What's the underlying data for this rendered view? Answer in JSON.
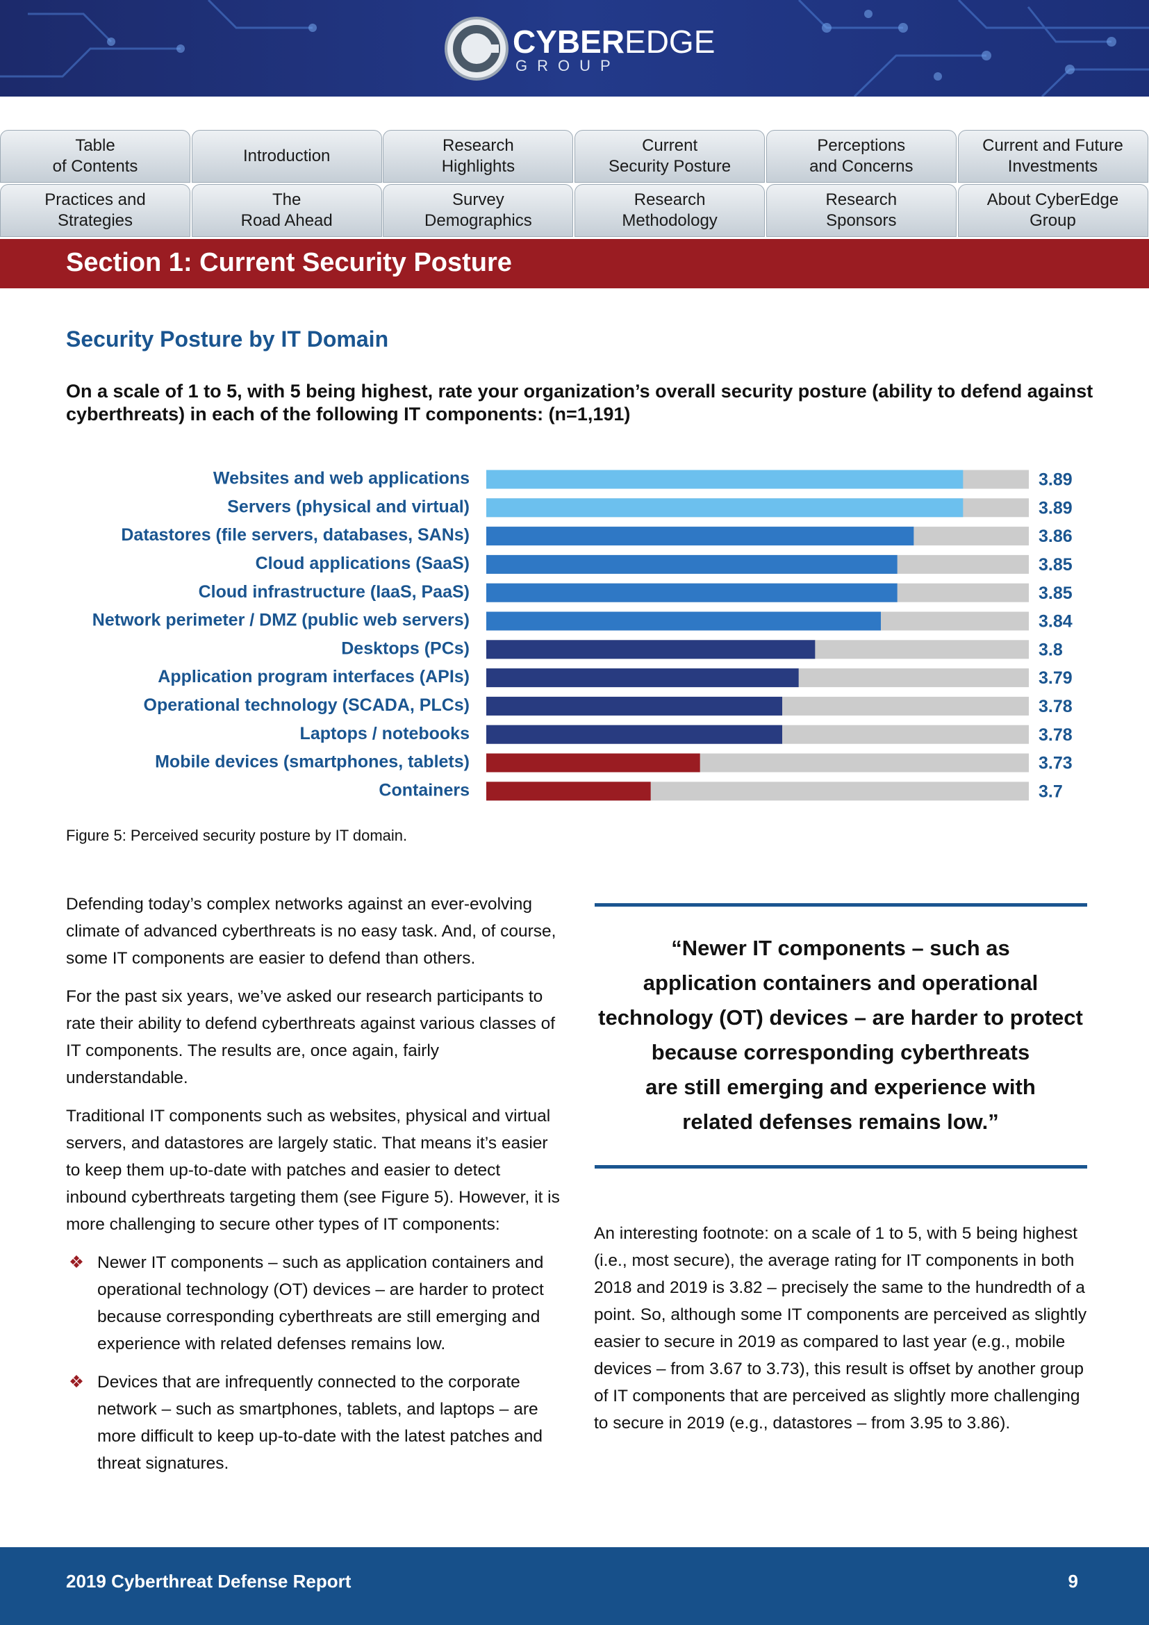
{
  "header": {
    "logo": {
      "primary": "CYBER",
      "secondary": "EDGE",
      "sub": "GROUP"
    }
  },
  "nav": {
    "rows": [
      [
        [
          "Table",
          "of Contents"
        ],
        [
          "Introduction"
        ],
        [
          "Research",
          "Highlights"
        ],
        [
          "Current",
          "Security Posture"
        ],
        [
          "Perceptions",
          "and Concerns"
        ],
        [
          "Current and Future",
          "Investments"
        ]
      ],
      [
        [
          "Practices and",
          "Strategies"
        ],
        [
          "The",
          "Road Ahead"
        ],
        [
          "Survey",
          "Demographics"
        ],
        [
          "Research",
          "Methodology"
        ],
        [
          "Research",
          "Sponsors"
        ],
        [
          "About CyberEdge",
          "Group"
        ]
      ]
    ]
  },
  "section_title": "Section 1: Current Security Posture",
  "heading": "Security Posture by IT Domain",
  "question": "On a scale of 1 to 5, with 5 being highest, rate your organization’s overall security posture (ability to defend against cyberthreats) in each of the following IT components: (n=1,191)",
  "chart_data": {
    "type": "bar",
    "orientation": "horizontal",
    "categories": [
      "Websites and web applications",
      "Servers (physical and virtual)",
      "Datastores (file servers, databases, SANs)",
      "Cloud applications (SaaS)",
      "Cloud infrastructure (IaaS, PaaS)",
      "Network perimeter / DMZ (public web servers)",
      "Desktops (PCs)",
      "Application program interfaces (APIs)",
      "Operational technology (SCADA, PLCs)",
      "Laptops / notebooks",
      "Mobile devices (smartphones, tablets)",
      "Containers"
    ],
    "values": [
      3.89,
      3.89,
      3.86,
      3.85,
      3.85,
      3.84,
      3.8,
      3.79,
      3.78,
      3.78,
      3.73,
      3.7
    ],
    "colors": [
      "#6cc0ee",
      "#6cc0ee",
      "#2f78c5",
      "#2f78c5",
      "#2f78c5",
      "#2f78c5",
      "#283b80",
      "#283b80",
      "#283b80",
      "#283b80",
      "#9a1c22",
      "#9a1c22"
    ],
    "track_color": "#cccccc",
    "xlim": [
      3.6,
      3.93
    ]
  },
  "caption": "Figure 5: Perceived security posture by IT domain.",
  "left_column": {
    "paragraphs": [
      "Defending today’s complex networks against an ever-evolving climate of advanced cyberthreats is no easy task. And, of course, some IT components are easier to defend than others.",
      "For the past six years, we’ve asked our research participants to rate their ability to defend cyberthreats against various classes of IT components. The results are, once again, fairly understandable.",
      "Traditional IT components such as websites, physical and virtual servers, and datastores are largely static. That means it’s easier to keep them up-to-date with patches and easier to detect inbound cyberthreats targeting them (see Figure 5). However, it is more challenging to secure other types of IT components:"
    ],
    "bullets": [
      "Newer IT components – such as application containers and operational technology (OT) devices – are harder to protect because corresponding cyberthreats are still emerging and experience with related defenses remains low.",
      "Devices that are infrequently connected to the corporate network – such as smartphones, tablets, and laptops – are more difficult to keep up-to-date with the latest patches and threat signatures."
    ]
  },
  "quote": [
    "“Newer IT components – such as",
    "application containers and operational",
    "technology (OT) devices – are harder to protect",
    "because corresponding cyberthreats",
    "are still emerging and experience with",
    "related defenses remains low.”"
  ],
  "right_paragraph": "An interesting footnote: on a scale of 1 to 5, with 5 being highest (i.e., most secure), the average rating for IT components in both 2018 and 2019 is 3.82 – precisely the same to the hundredth of a point. So, although some IT components are perceived as slightly easier to secure in 2019 as compared to last year (e.g., mobile devices – from 3.67 to 3.73), this result is offset by another group of IT components that are perceived as slightly more challenging to secure in 2019 (e.g., datastores – from 3.95 to 3.86).",
  "footer": {
    "title": "2019 Cyberthreat Defense Report",
    "page": "9"
  }
}
